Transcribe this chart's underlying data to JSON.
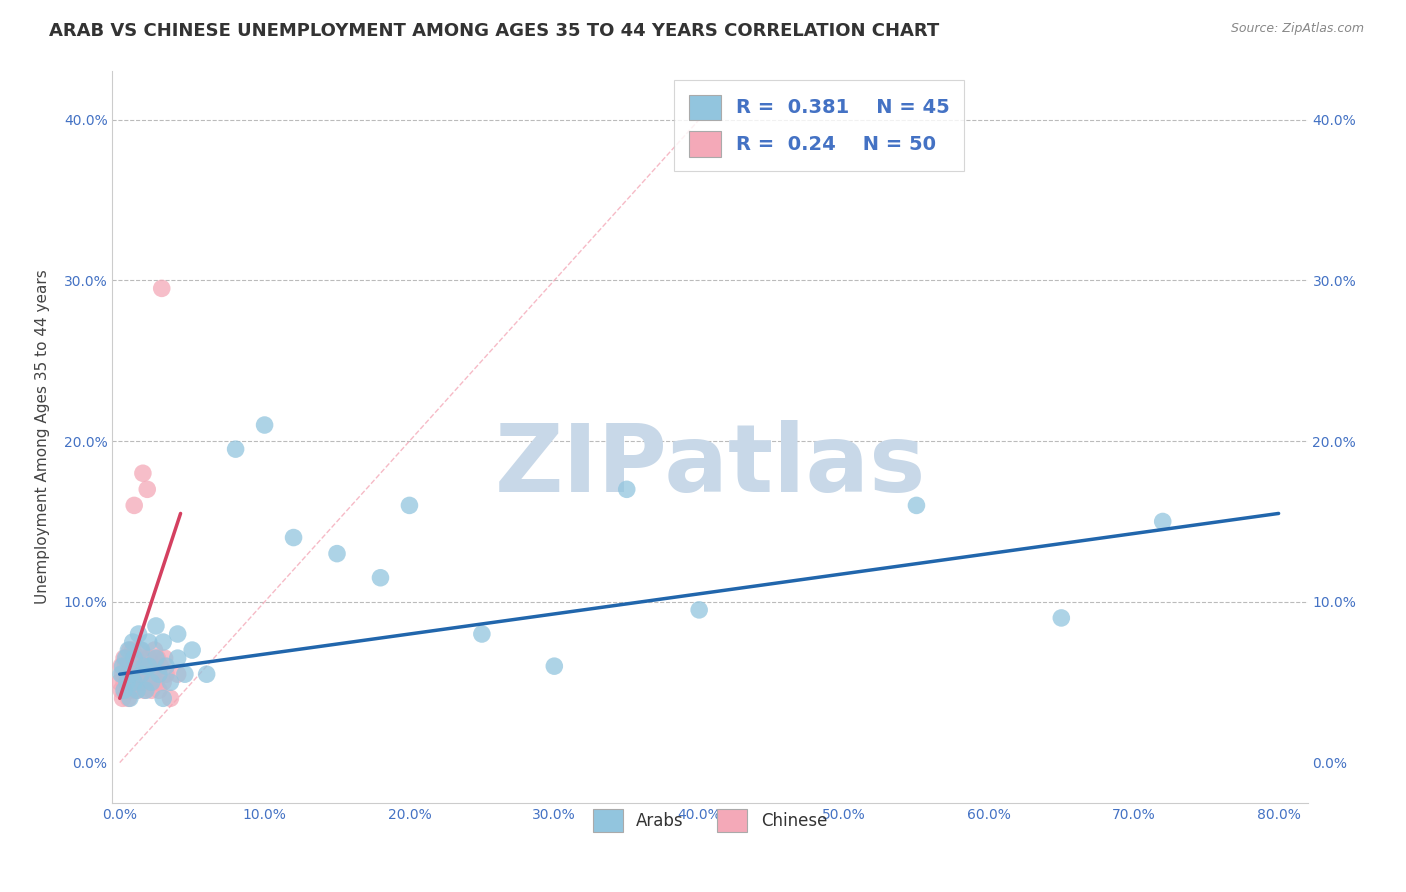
{
  "title": "ARAB VS CHINESE UNEMPLOYMENT AMONG AGES 35 TO 44 YEARS CORRELATION CHART",
  "source": "Source: ZipAtlas.com",
  "ylabel": "Unemployment Among Ages 35 to 44 years",
  "xlim": [
    -0.005,
    0.82
  ],
  "ylim": [
    -0.025,
    0.43
  ],
  "xticks": [
    0.0,
    0.1,
    0.2,
    0.3,
    0.4,
    0.5,
    0.6,
    0.7,
    0.8
  ],
  "yticks": [
    0.0,
    0.1,
    0.2,
    0.3,
    0.4
  ],
  "arab_color": "#92C5DE",
  "chinese_color": "#F4A9B8",
  "arab_R": 0.381,
  "arab_N": 45,
  "chinese_R": 0.24,
  "chinese_N": 50,
  "arab_line_color": "#2166AC",
  "chinese_line_color": "#D44060",
  "diag_line_color": "#F4A9B8",
  "watermark": "ZIPatlas",
  "watermark_color": "#C8D8E8",
  "title_fontsize": 13,
  "axis_label_fontsize": 11,
  "tick_fontsize": 10,
  "legend_fontsize": 13,
  "arab_scatter_x": [
    0.001,
    0.002,
    0.003,
    0.004,
    0.005,
    0.006,
    0.007,
    0.008,
    0.009,
    0.01,
    0.01,
    0.012,
    0.013,
    0.015,
    0.015,
    0.017,
    0.018,
    0.02,
    0.02,
    0.022,
    0.025,
    0.025,
    0.027,
    0.03,
    0.03,
    0.032,
    0.035,
    0.04,
    0.04,
    0.045,
    0.05,
    0.06,
    0.08,
    0.1,
    0.12,
    0.15,
    0.18,
    0.2,
    0.25,
    0.3,
    0.35,
    0.4,
    0.55,
    0.65,
    0.72
  ],
  "arab_scatter_y": [
    0.055,
    0.06,
    0.045,
    0.065,
    0.05,
    0.07,
    0.04,
    0.055,
    0.075,
    0.05,
    0.065,
    0.045,
    0.08,
    0.055,
    0.07,
    0.06,
    0.045,
    0.06,
    0.075,
    0.05,
    0.065,
    0.085,
    0.055,
    0.04,
    0.075,
    0.06,
    0.05,
    0.08,
    0.065,
    0.055,
    0.07,
    0.055,
    0.195,
    0.21,
    0.14,
    0.13,
    0.115,
    0.16,
    0.08,
    0.06,
    0.17,
    0.095,
    0.16,
    0.09,
    0.15
  ],
  "chinese_scatter_x": [
    0.0,
    0.001,
    0.001,
    0.002,
    0.002,
    0.003,
    0.003,
    0.004,
    0.004,
    0.005,
    0.005,
    0.006,
    0.006,
    0.007,
    0.007,
    0.008,
    0.008,
    0.009,
    0.009,
    0.01,
    0.01,
    0.011,
    0.011,
    0.012,
    0.012,
    0.013,
    0.014,
    0.015,
    0.015,
    0.016,
    0.016,
    0.017,
    0.018,
    0.019,
    0.02,
    0.02,
    0.021,
    0.022,
    0.023,
    0.024,
    0.025,
    0.026,
    0.027,
    0.028,
    0.029,
    0.03,
    0.031,
    0.032,
    0.035,
    0.04
  ],
  "chinese_scatter_y": [
    0.05,
    0.045,
    0.06,
    0.04,
    0.055,
    0.065,
    0.05,
    0.045,
    0.06,
    0.05,
    0.065,
    0.04,
    0.055,
    0.07,
    0.045,
    0.05,
    0.06,
    0.045,
    0.07,
    0.055,
    0.16,
    0.05,
    0.065,
    0.045,
    0.06,
    0.055,
    0.07,
    0.05,
    0.065,
    0.055,
    0.18,
    0.045,
    0.06,
    0.17,
    0.05,
    0.065,
    0.06,
    0.045,
    0.055,
    0.07,
    0.05,
    0.065,
    0.045,
    0.06,
    0.295,
    0.05,
    0.065,
    0.055,
    0.04,
    0.055
  ],
  "arab_line_x0": 0.0,
  "arab_line_x1": 0.8,
  "arab_line_y0": 0.055,
  "arab_line_y1": 0.155,
  "chin_line_x0": 0.0,
  "chin_line_x1": 0.042,
  "chin_line_y0": 0.04,
  "chin_line_y1": 0.155
}
